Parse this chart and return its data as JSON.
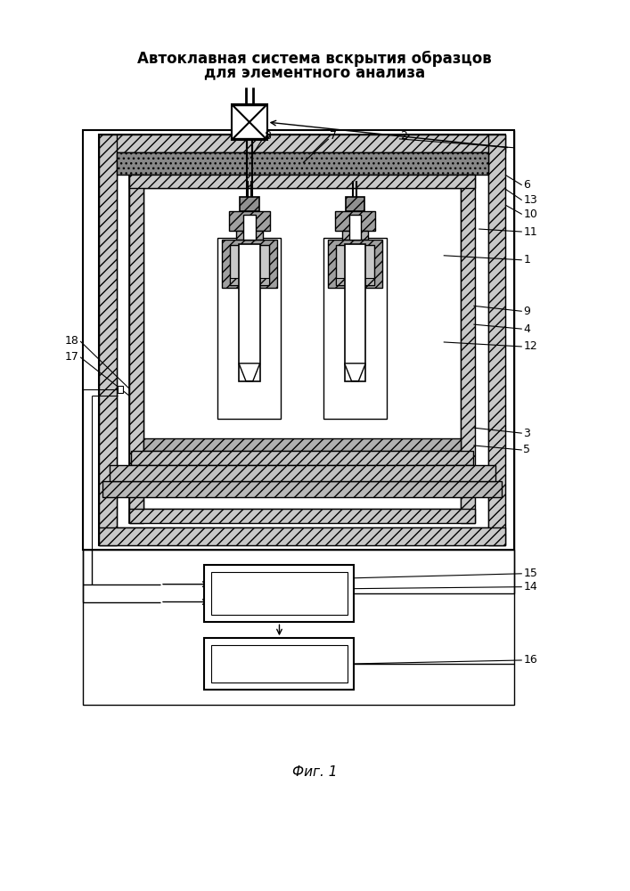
{
  "title_line1": "Автоклавная система вскрытия образцов",
  "title_line2": "для элементного анализа",
  "caption": "Фиг. 1",
  "bg_color": "#ffffff"
}
